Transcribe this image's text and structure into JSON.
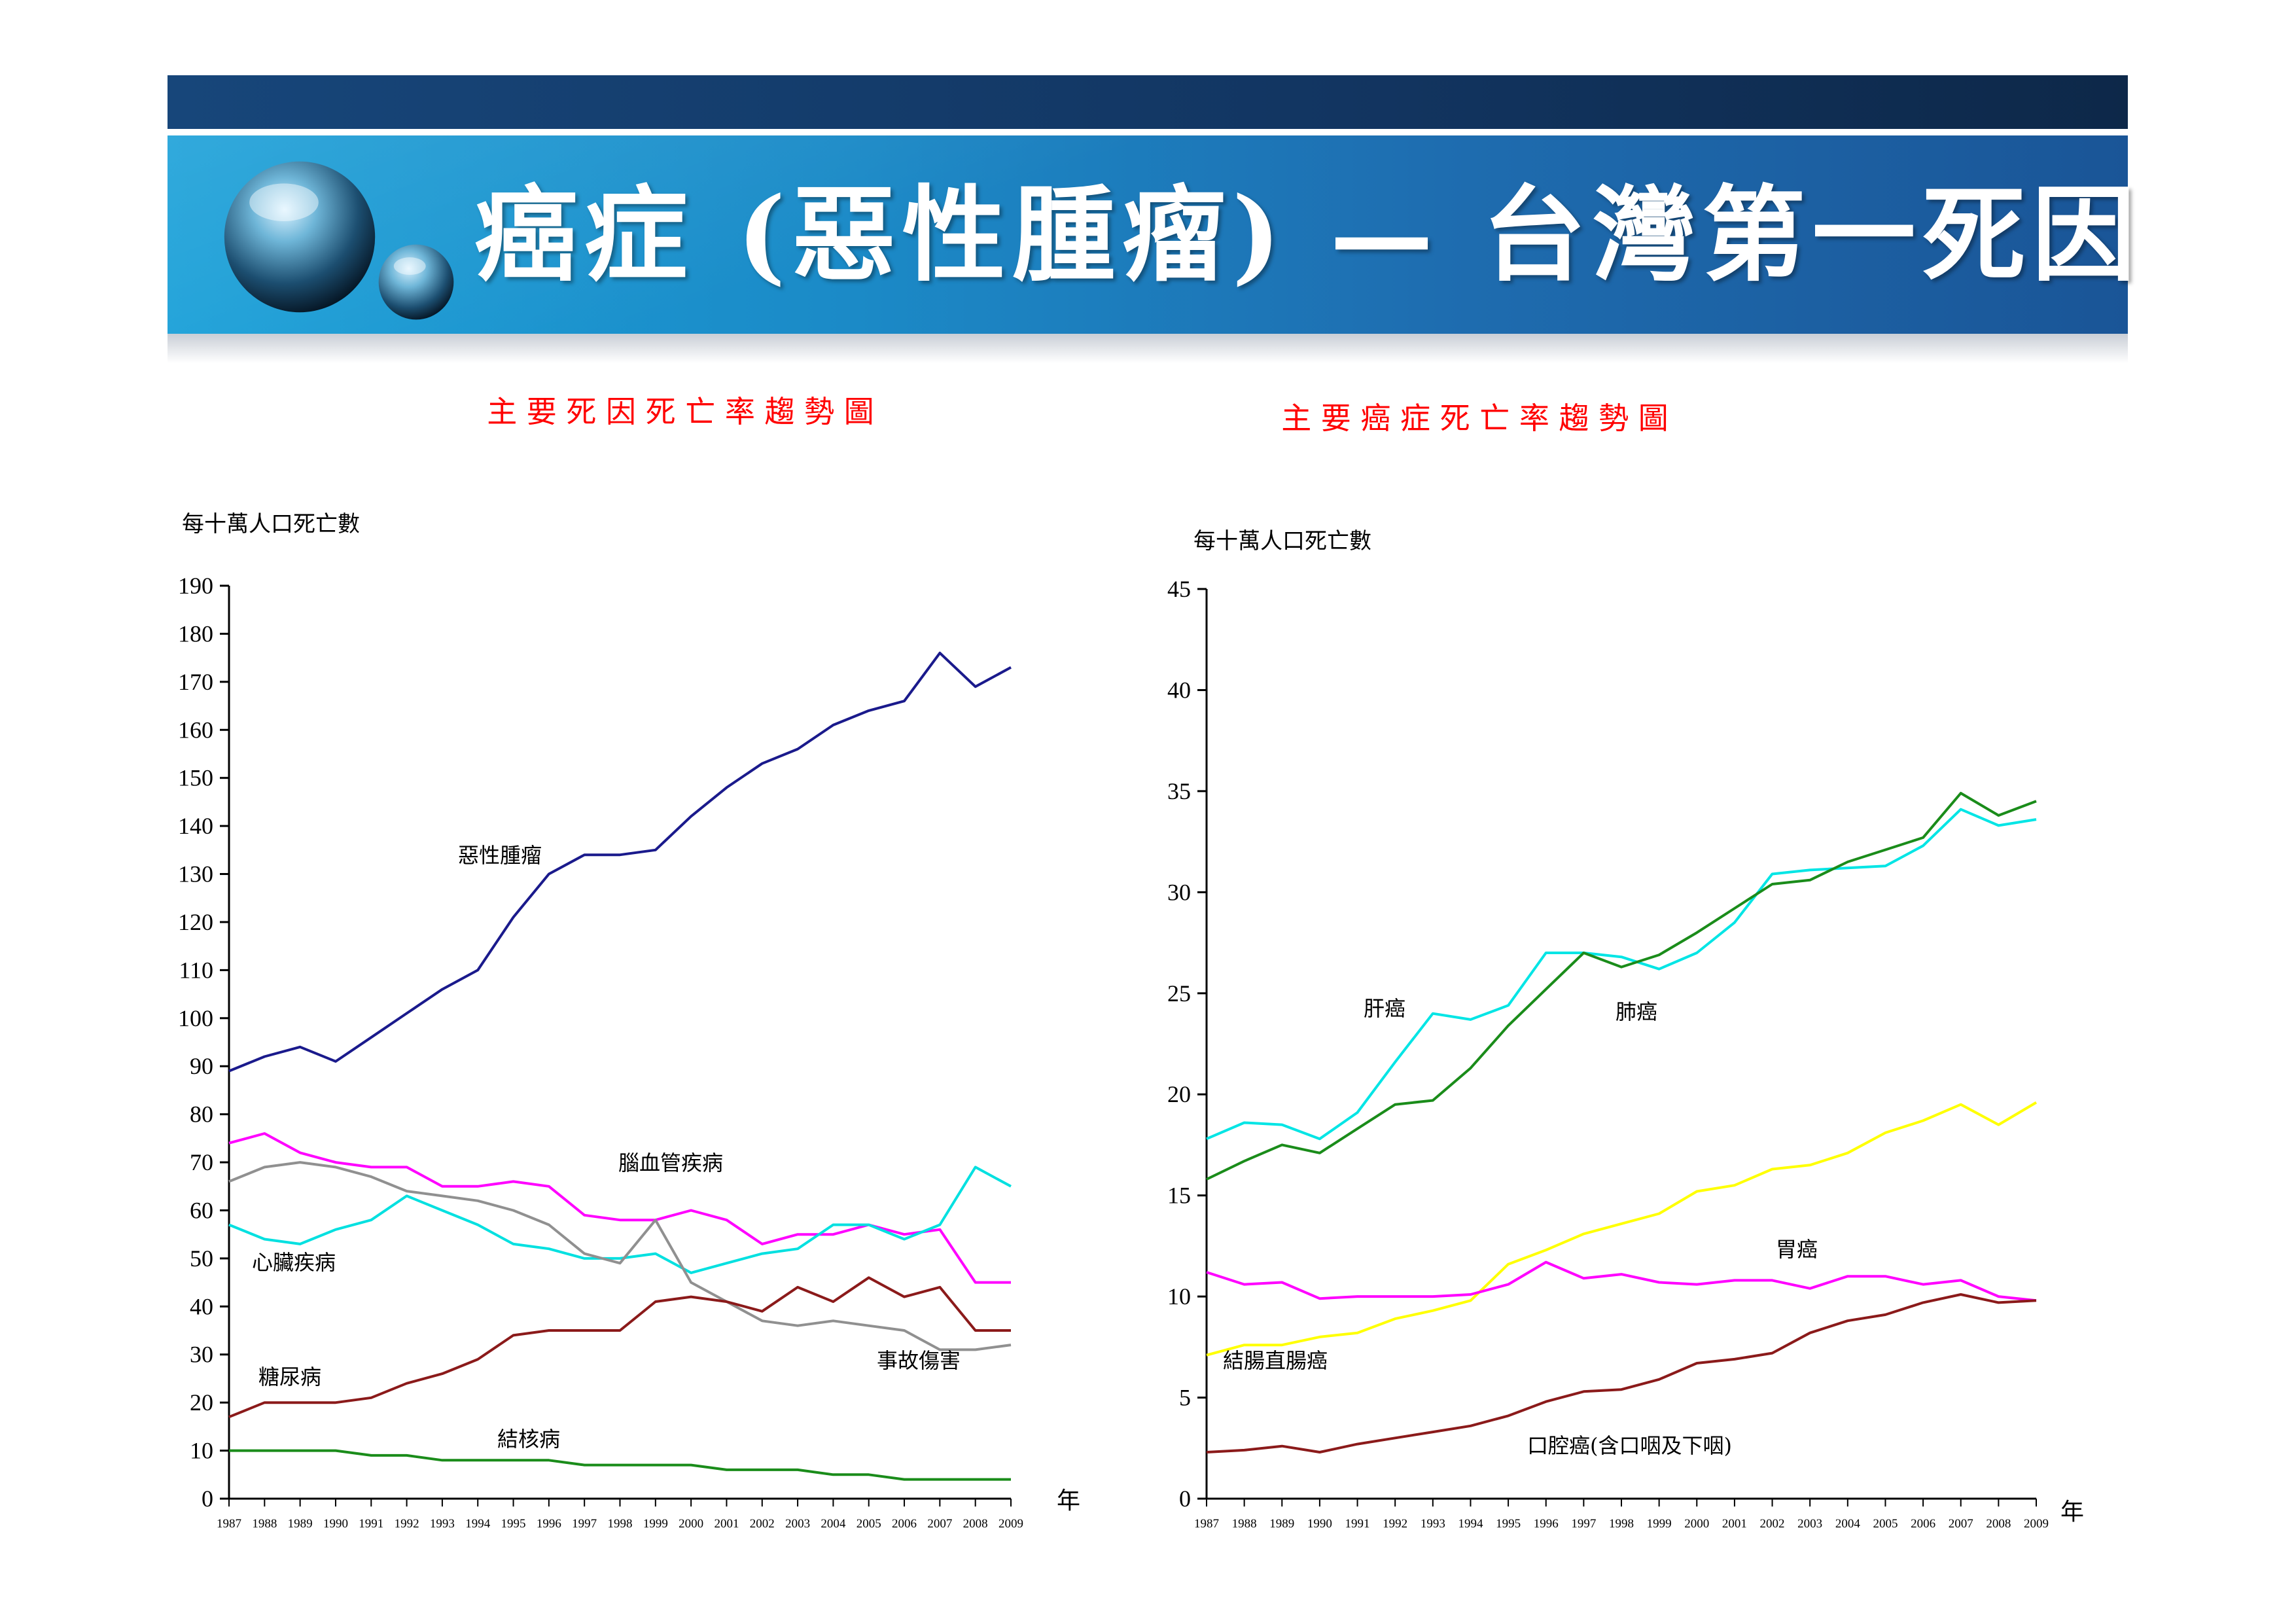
{
  "slide": {
    "title": "癌症 (惡性腫瘤) — 台灣第一死因"
  },
  "colors": {
    "banner": "#1b7fc1",
    "title_text": "#ffffff",
    "chart_title": "#ff0000"
  },
  "chart_data": [
    {
      "type": "line",
      "title": "主 要 死 因 死 亡 率 趨 勢 圖",
      "ylabel": "每十萬人口死亡數",
      "xlabel": "年",
      "ylim": [
        0,
        190
      ],
      "yticks": [
        0,
        10,
        20,
        30,
        40,
        50,
        60,
        70,
        80,
        90,
        100,
        110,
        120,
        130,
        140,
        150,
        160,
        170,
        180,
        190
      ],
      "x": [
        "1987",
        "1988",
        "1989",
        "1990",
        "1991",
        "1992",
        "1993",
        "1994",
        "1995",
        "1996",
        "1997",
        "1998",
        "1999",
        "2000",
        "2001",
        "2002",
        "2003",
        "2004",
        "2005",
        "2006",
        "2007",
        "2008",
        "2009"
      ],
      "grid": false,
      "series": [
        {
          "name": "惡性腫瘤",
          "color": "#1a1a8c",
          "values": [
            89,
            92,
            94,
            91,
            96,
            101,
            106,
            110,
            121,
            130,
            134,
            134,
            135,
            142,
            148,
            153,
            156,
            161,
            164,
            166,
            176,
            169,
            173
          ]
        },
        {
          "name": "腦血管疾病",
          "color": "#ff00ff",
          "values": [
            74,
            76,
            72,
            70,
            69,
            69,
            65,
            65,
            66,
            65,
            59,
            58,
            58,
            60,
            58,
            53,
            55,
            55,
            57,
            55,
            56,
            45,
            45
          ]
        },
        {
          "name": "心臟疾病",
          "color": "#00e0e0",
          "values": [
            57,
            54,
            53,
            56,
            58,
            63,
            60,
            57,
            53,
            52,
            50,
            50,
            51,
            47,
            49,
            51,
            52,
            57,
            57,
            54,
            57,
            69,
            65
          ]
        },
        {
          "name": "事故傷害",
          "color": "#909090",
          "values": [
            66,
            69,
            70,
            69,
            67,
            64,
            63,
            62,
            60,
            57,
            51,
            49,
            58,
            45,
            41,
            37,
            36,
            37,
            36,
            35,
            31,
            31,
            32
          ]
        },
        {
          "name": "糖尿病",
          "color": "#8b1a1a",
          "values": [
            17,
            20,
            20,
            20,
            21,
            24,
            26,
            29,
            34,
            35,
            35,
            35,
            41,
            42,
            41,
            39,
            44,
            41,
            46,
            42,
            44,
            35,
            35
          ]
        },
        {
          "name": "結核病",
          "color": "#1a8c1a",
          "values": [
            10,
            10,
            10,
            10,
            9,
            9,
            8,
            8,
            8,
            8,
            7,
            7,
            7,
            7,
            6,
            6,
            6,
            5,
            5,
            4,
            4,
            4,
            4
          ]
        }
      ]
    },
    {
      "type": "line",
      "title": "主 要 癌 症 死 亡 率 趨 勢 圖",
      "ylabel": "每十萬人口死亡數",
      "xlabel": "年",
      "ylim": [
        0,
        45
      ],
      "yticks": [
        0,
        5,
        10,
        15,
        20,
        25,
        30,
        35,
        40,
        45
      ],
      "x": [
        "1987",
        "1988",
        "1989",
        "1990",
        "1991",
        "1992",
        "1993",
        "1994",
        "1995",
        "1996",
        "1997",
        "1998",
        "1999",
        "2000",
        "2001",
        "2002",
        "2003",
        "2004",
        "2005",
        "2006",
        "2007",
        "2008",
        "2009"
      ],
      "grid": false,
      "series": [
        {
          "name": "肝癌",
          "color": "#00e5e5",
          "values": [
            17.8,
            18.6,
            18.5,
            17.8,
            19.1,
            21.6,
            24.0,
            23.7,
            24.4,
            27.0,
            27.0,
            26.8,
            26.2,
            27.0,
            28.5,
            30.9,
            31.1,
            31.2,
            31.3,
            32.3,
            34.1,
            33.3,
            33.6
          ]
        },
        {
          "name": "肺癌",
          "color": "#1a8c1a",
          "values": [
            15.8,
            16.7,
            17.5,
            17.1,
            18.3,
            19.5,
            19.7,
            21.3,
            23.4,
            25.2,
            27.0,
            26.3,
            26.9,
            28.0,
            29.2,
            30.4,
            30.6,
            31.5,
            32.1,
            32.7,
            34.9,
            33.8,
            34.5
          ]
        },
        {
          "name": "結腸直腸癌",
          "color": "#ffff00",
          "values": [
            7.1,
            7.6,
            7.6,
            8.0,
            8.2,
            8.9,
            9.3,
            9.8,
            11.6,
            12.3,
            13.1,
            13.6,
            14.1,
            15.2,
            15.5,
            16.3,
            16.5,
            17.1,
            18.1,
            18.7,
            19.5,
            18.5,
            19.6
          ]
        },
        {
          "name": "胃癌",
          "color": "#ff00ff",
          "values": [
            11.2,
            10.6,
            10.7,
            9.9,
            10.0,
            10.0,
            10.0,
            10.1,
            10.6,
            11.7,
            10.9,
            11.1,
            10.7,
            10.6,
            10.8,
            10.8,
            10.4,
            11.0,
            11.0,
            10.6,
            10.8,
            10.0,
            9.8
          ]
        },
        {
          "name": "口腔癌(含口咽及下咽)",
          "color": "#8b1a1a",
          "values": [
            2.3,
            2.4,
            2.6,
            2.3,
            2.7,
            3.0,
            3.3,
            3.6,
            4.1,
            4.8,
            5.3,
            5.4,
            5.9,
            6.7,
            6.9,
            7.2,
            8.2,
            8.8,
            9.1,
            9.7,
            10.1,
            9.7,
            9.8
          ]
        }
      ]
    }
  ]
}
